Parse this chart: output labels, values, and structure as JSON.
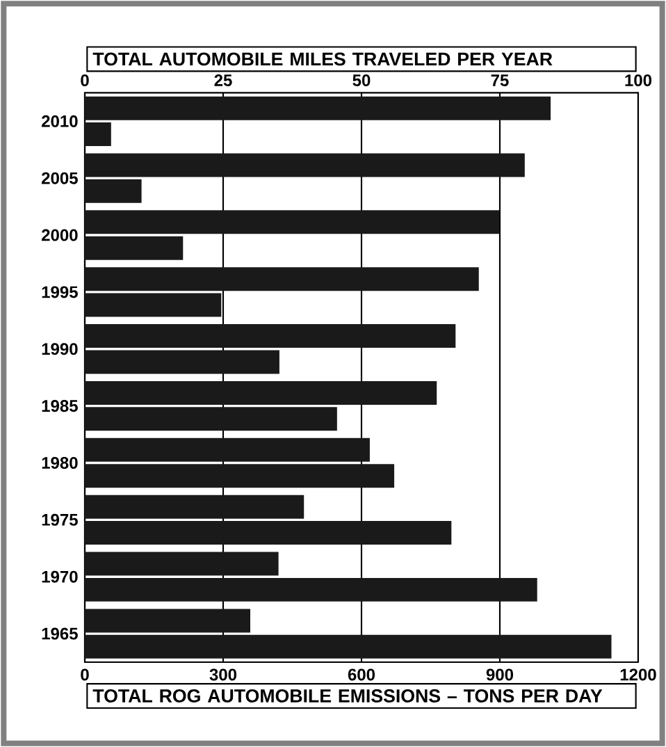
{
  "chart_data": {
    "type": "bar",
    "orientation": "horizontal",
    "categories": [
      "2010",
      "2005",
      "2000",
      "1995",
      "1990",
      "1985",
      "1980",
      "1975",
      "1970",
      "1965"
    ],
    "series": [
      {
        "color": "#1a1a1a",
        "axis": "x2",
        "values": [
          84.2,
          79.5,
          74.9,
          71.2,
          67.0,
          63.6,
          51.5,
          39.6,
          35.0,
          29.9
        ]
      },
      {
        "color": "#1a1a1a",
        "values": [
          57,
          123,
          213,
          296,
          422,
          547,
          671,
          795,
          981,
          1142
        ]
      }
    ],
    "x2label": "TOTAL AUTOMOBILE MILES TRAVELED PER YEAR",
    "x2lim": [
      0,
      100
    ],
    "x2ticks": [
      0,
      25,
      50,
      75,
      100
    ],
    "xlabel": "TOTAL ROG AUTOMOBILE EMISSIONS – TONS PER DAY",
    "xlim": [
      0,
      1200
    ],
    "xticks": [
      0,
      300,
      600,
      900,
      1200
    ],
    "grid": "x"
  }
}
